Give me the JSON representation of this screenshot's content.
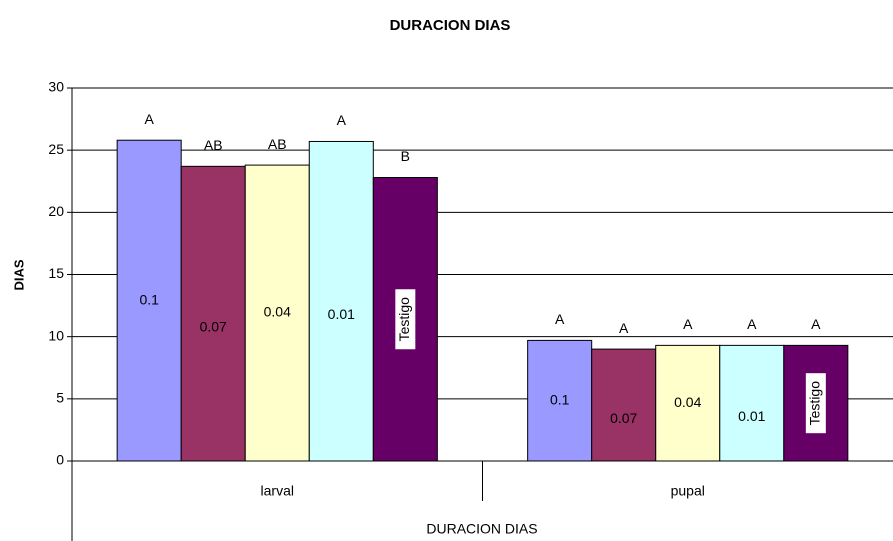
{
  "chart_data": {
    "type": "bar",
    "title": "DURACION DIAS",
    "y_label": "DIAS",
    "x_label": "DURACION DIAS",
    "categories": [
      "larval",
      "pupal"
    ],
    "series": [
      {
        "name": "0.1",
        "color": "#9999ff",
        "values": [
          25.8,
          9.7
        ],
        "annotations": [
          "A",
          "A"
        ]
      },
      {
        "name": "0.07",
        "color": "#993366",
        "values": [
          23.7,
          9.0
        ],
        "annotations": [
          "AB",
          "A"
        ]
      },
      {
        "name": "0.04",
        "color": "#ffffcc",
        "values": [
          23.8,
          9.3
        ],
        "annotations": [
          "AB",
          "A"
        ]
      },
      {
        "name": "0.01",
        "color": "#ccffff",
        "values": [
          25.7,
          9.3
        ],
        "annotations": [
          "A",
          "A"
        ]
      },
      {
        "name": "Testigo",
        "color": "#660066",
        "values": [
          22.8,
          9.3
        ],
        "annotations": [
          "B",
          "A"
        ]
      }
    ],
    "ylim": [
      0,
      30
    ],
    "yticks": [
      0,
      5,
      10,
      15,
      20,
      25,
      30
    ],
    "grid": true
  }
}
